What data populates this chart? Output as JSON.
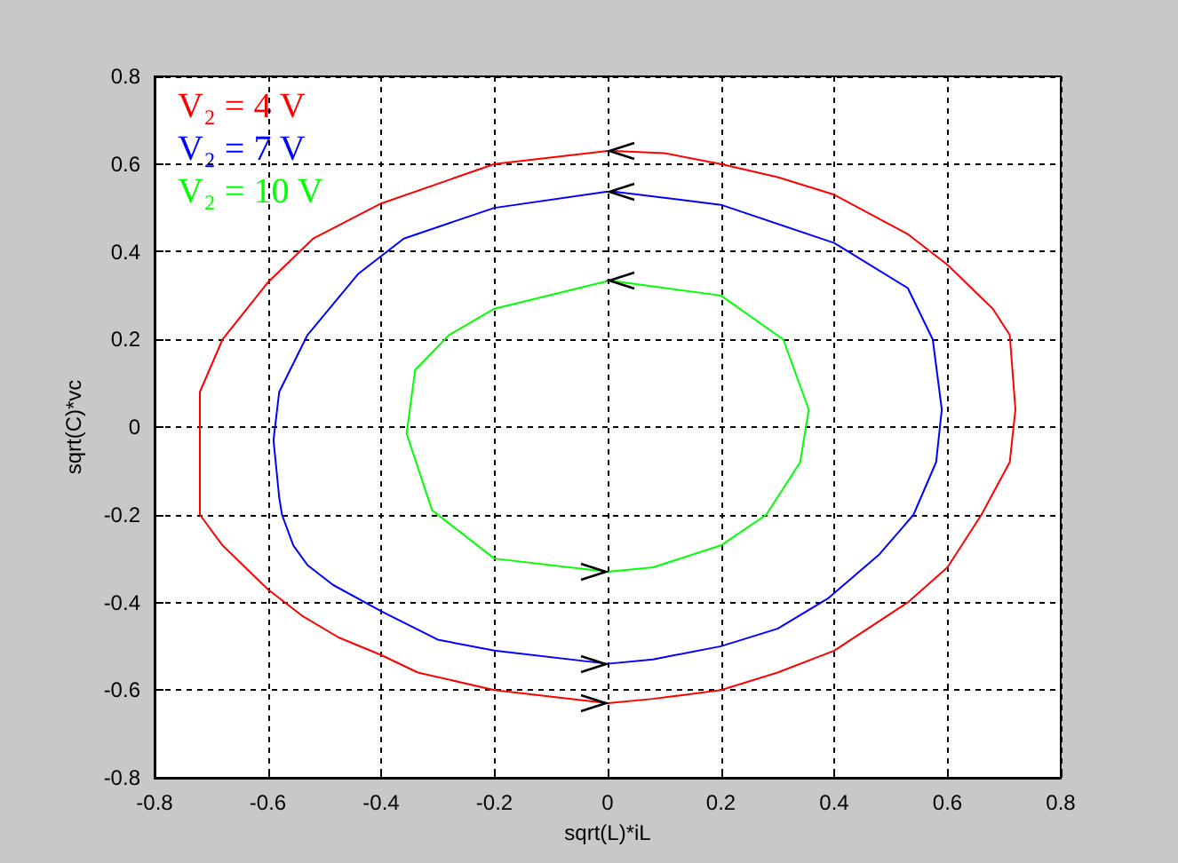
{
  "chart_data": {
    "type": "line",
    "xlabel": "sqrt(L)*iL",
    "ylabel": "sqrt(C)*vc",
    "xlim": [
      -0.8,
      0.8
    ],
    "ylim": [
      -0.8,
      0.8
    ],
    "xticks": [
      -0.8,
      -0.6,
      -0.4,
      -0.2,
      0,
      0.2,
      0.4,
      0.6,
      0.8
    ],
    "yticks": [
      -0.8,
      -0.6,
      -0.4,
      -0.2,
      0,
      0.2,
      0.4,
      0.6,
      0.8
    ],
    "grid": true,
    "marker": "none",
    "line_style": "solid",
    "series": [
      {
        "name": "V₂ = 4 V",
        "color": "#ff0000",
        "x": [
          0,
          -0.2,
          -0.4,
          -0.52,
          -0.6,
          -0.68,
          -0.72,
          -0.72,
          -0.72,
          -0.72,
          -0.68,
          -0.6,
          -0.54,
          -0.475,
          -0.4,
          -0.335,
          -0.2,
          0,
          0.08,
          0.2,
          0.3,
          0.4,
          0.53,
          0.6,
          0.66,
          0.71,
          0.72,
          0.71,
          0.68,
          0.6,
          0.53,
          0.4,
          0.3,
          0.2,
          0.1,
          0.01
        ],
        "values": [
          0.63,
          0.6,
          0.51,
          0.43,
          0.33,
          0.2,
          0.08,
          -0.04,
          -0.19,
          -0.2,
          -0.27,
          -0.37,
          -0.43,
          -0.48,
          -0.52,
          -0.56,
          -0.6,
          -0.63,
          -0.62,
          -0.6,
          -0.56,
          -0.51,
          -0.4,
          -0.32,
          -0.2,
          -0.08,
          0.04,
          0.21,
          0.27,
          0.37,
          0.44,
          0.53,
          0.57,
          0.6,
          0.625,
          0.63
        ]
      },
      {
        "name": "V₂ = 7 V",
        "color": "#0000ff",
        "x": [
          0,
          -0.2,
          -0.36,
          -0.44,
          -0.53,
          -0.58,
          -0.59,
          -0.58,
          -0.575,
          -0.555,
          -0.53,
          -0.485,
          -0.4,
          -0.3,
          -0.2,
          0,
          0.08,
          0.2,
          0.3,
          0.39,
          0.48,
          0.54,
          0.58,
          0.59,
          0.574,
          0.53,
          0.4,
          0.2,
          0.01
        ],
        "values": [
          0.537,
          0.5,
          0.43,
          0.35,
          0.21,
          0.08,
          -0.03,
          -0.16,
          -0.2,
          -0.27,
          -0.315,
          -0.36,
          -0.42,
          -0.485,
          -0.51,
          -0.54,
          -0.53,
          -0.5,
          -0.46,
          -0.39,
          -0.29,
          -0.2,
          -0.08,
          0.04,
          0.2,
          0.317,
          0.42,
          0.507,
          0.537
        ]
      },
      {
        "name": "V₂ = 10 V",
        "color": "#00ff00",
        "x": [
          0,
          -0.2,
          -0.28,
          -0.34,
          -0.355,
          -0.31,
          -0.2,
          0,
          0.08,
          0.2,
          0.28,
          0.34,
          0.355,
          0.31,
          0.2,
          0.01
        ],
        "values": [
          0.333,
          0.27,
          0.21,
          0.13,
          -0.015,
          -0.19,
          -0.3,
          -0.33,
          -0.32,
          -0.27,
          -0.2,
          -0.08,
          0.04,
          0.2,
          0.3,
          0.333
        ]
      }
    ]
  }
}
